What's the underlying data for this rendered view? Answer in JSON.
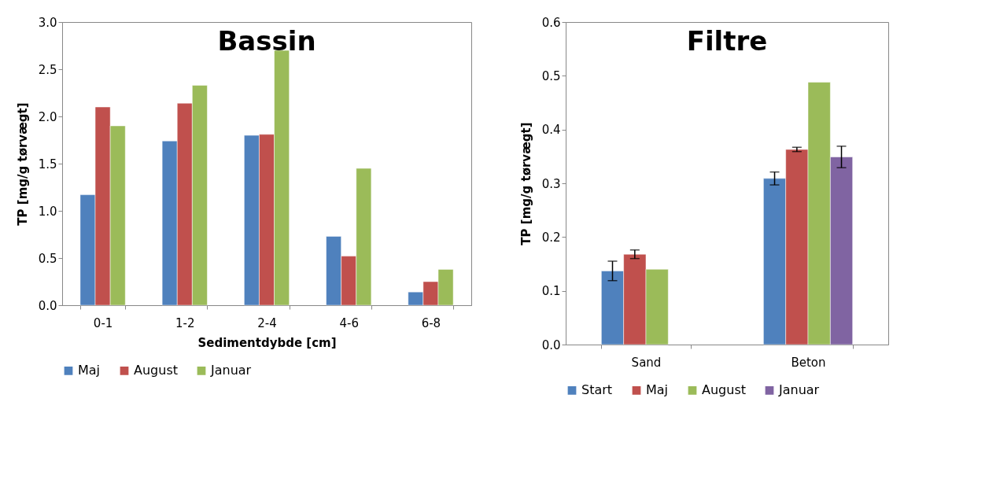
{
  "chart_data": [
    {
      "type": "bar",
      "title": "Bassin",
      "xlabel": "Sedimentdybde [cm]",
      "ylabel": "TP [mg/g tørvægt]",
      "categories": [
        "0-1",
        "1-2",
        "2-4",
        "4-6",
        "6-8"
      ],
      "series": [
        {
          "name": "Maj",
          "color": "#4f81bd",
          "values": [
            1.17,
            1.74,
            1.8,
            0.73,
            0.14
          ]
        },
        {
          "name": "August",
          "color": "#c0504d",
          "values": [
            2.1,
            2.14,
            1.81,
            0.52,
            0.25
          ]
        },
        {
          "name": "Januar",
          "color": "#9bbb59",
          "values": [
            1.9,
            2.33,
            2.7,
            1.45,
            0.38
          ]
        }
      ],
      "ylim": [
        0,
        3
      ],
      "yticks": [
        {
          "value": 0,
          "label": "0.0"
        },
        0.5,
        {
          "value": 1,
          "label": "1.0"
        },
        1.5,
        {
          "value": 2,
          "label": "2.0"
        },
        2.5,
        {
          "value": 3,
          "label": "3.0"
        }
      ],
      "grid": false,
      "legend": "bottom"
    },
    {
      "type": "bar",
      "title": "Filtre",
      "ylabel": "TP [mg/g tørvægt]",
      "categories": [
        "Sand",
        "Beton"
      ],
      "series": [
        {
          "name": "Start",
          "color": "#4f81bd",
          "values": [
            0.137,
            0.309
          ],
          "errors": [
            0.018,
            0.012
          ]
        },
        {
          "name": "Maj",
          "color": "#c0504d",
          "values": [
            0.168,
            0.363
          ],
          "errors": [
            0.008,
            0.004
          ]
        },
        {
          "name": "August",
          "color": "#9bbb59",
          "values": [
            0.14,
            0.488
          ]
        },
        {
          "name": "Januar",
          "color": "#8064a2",
          "values": [
            null,
            0.349
          ],
          "errors": [
            null,
            0.02
          ]
        }
      ],
      "ylim": [
        0,
        0.6
      ],
      "yticks": [
        {
          "value": 0,
          "label": "0.0"
        },
        0.1,
        0.2,
        0.3,
        0.4,
        0.5,
        0.6
      ],
      "grid": false,
      "legend": "bottom"
    }
  ]
}
